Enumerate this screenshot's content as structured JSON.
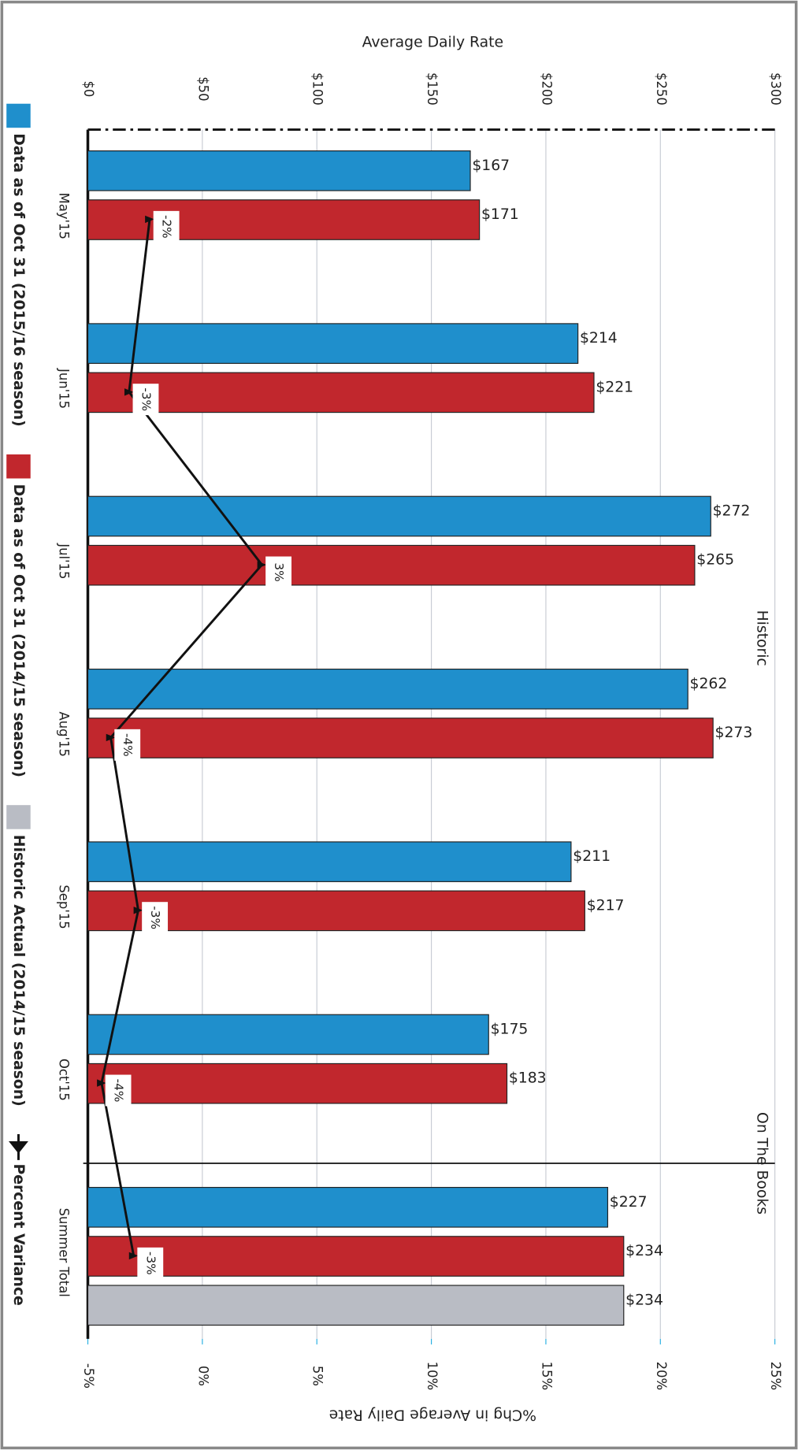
{
  "chart_data": {
    "type": "bar",
    "title": "Average Daily Rate",
    "y2_title": "%Chg in Average Daily Rate",
    "categories": [
      "May'15",
      "Jun'15",
      "Jul'15",
      "Aug'15",
      "Sep'15",
      "Oct'15",
      "Summer Total"
    ],
    "series": [
      {
        "name": "Data as of Oct 31 (2015/16 season)",
        "color": "#1f8fcc",
        "values": [
          167,
          214,
          272,
          262,
          211,
          175,
          227
        ],
        "value_labels": [
          "$167",
          "$214",
          "$272",
          "$262",
          "$211",
          "$175",
          "$227"
        ]
      },
      {
        "name": "Data as of Oct 31 (2014/15 season)",
        "color": "#c1272d",
        "values": [
          171,
          221,
          265,
          273,
          217,
          183,
          234
        ],
        "value_labels": [
          "$171",
          "$221",
          "$265",
          "$273",
          "$217",
          "$183",
          "$234"
        ]
      },
      {
        "name": "Historic Actual (2014/15 season)",
        "color": "#b9bcc4",
        "values": [
          null,
          null,
          null,
          null,
          null,
          null,
          234
        ],
        "value_labels": [
          null,
          null,
          null,
          null,
          null,
          null,
          "$234"
        ]
      },
      {
        "name": "Percent Variance",
        "type": "line",
        "axis": "y2",
        "color": "#111111",
        "values": [
          -2.3,
          -3.2,
          2.6,
          -4.0,
          -2.8,
          -4.4,
          -3.0
        ],
        "value_labels": [
          "-2%",
          "-3%",
          "3%",
          "-4%",
          "-3%",
          "-4%",
          "-3%"
        ]
      }
    ],
    "ylim": [
      0,
      300
    ],
    "yticks": [
      {
        "value": 0,
        "label": "$0"
      },
      {
        "value": 50,
        "label": "$50"
      },
      {
        "value": 100,
        "label": "$100"
      },
      {
        "value": 150,
        "label": "$150"
      },
      {
        "value": 200,
        "label": "$200"
      },
      {
        "value": 250,
        "label": "$250"
      },
      {
        "value": 300,
        "label": "$300"
      }
    ],
    "y2lim": [
      -5,
      25
    ],
    "y2ticks": [
      {
        "value": -5,
        "label": "-5%"
      },
      {
        "value": 0,
        "label": "0%"
      },
      {
        "value": 5,
        "label": "5%"
      },
      {
        "value": 10,
        "label": "10%"
      },
      {
        "value": 15,
        "label": "15%"
      },
      {
        "value": 20,
        "label": "20%"
      },
      {
        "value": 25,
        "label": "25%"
      }
    ],
    "grid": true,
    "annotations": [
      "Historic",
      "On The Books"
    ]
  }
}
